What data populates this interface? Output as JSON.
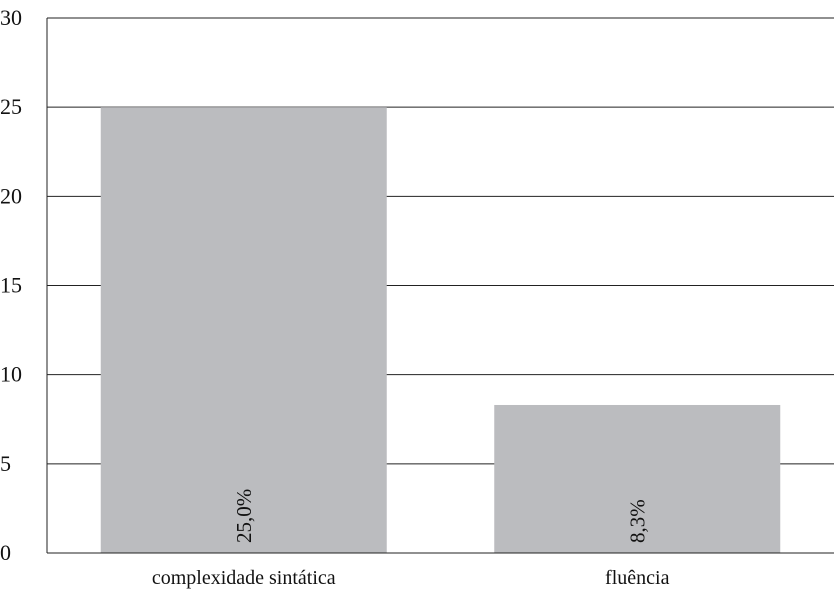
{
  "chart_data": {
    "type": "bar",
    "categories": [
      "complexidade sintática",
      "fluência"
    ],
    "values": [
      25.0,
      8.3
    ],
    "data_labels": [
      "25,0%",
      "8,3%"
    ],
    "ylim": [
      0,
      30
    ],
    "yticks": [
      "0",
      "5",
      "10",
      "15",
      "20",
      "25",
      "30"
    ],
    "grid": true,
    "bar_color": "#bbbcbf",
    "title": "",
    "xlabel": "",
    "ylabel": ""
  }
}
